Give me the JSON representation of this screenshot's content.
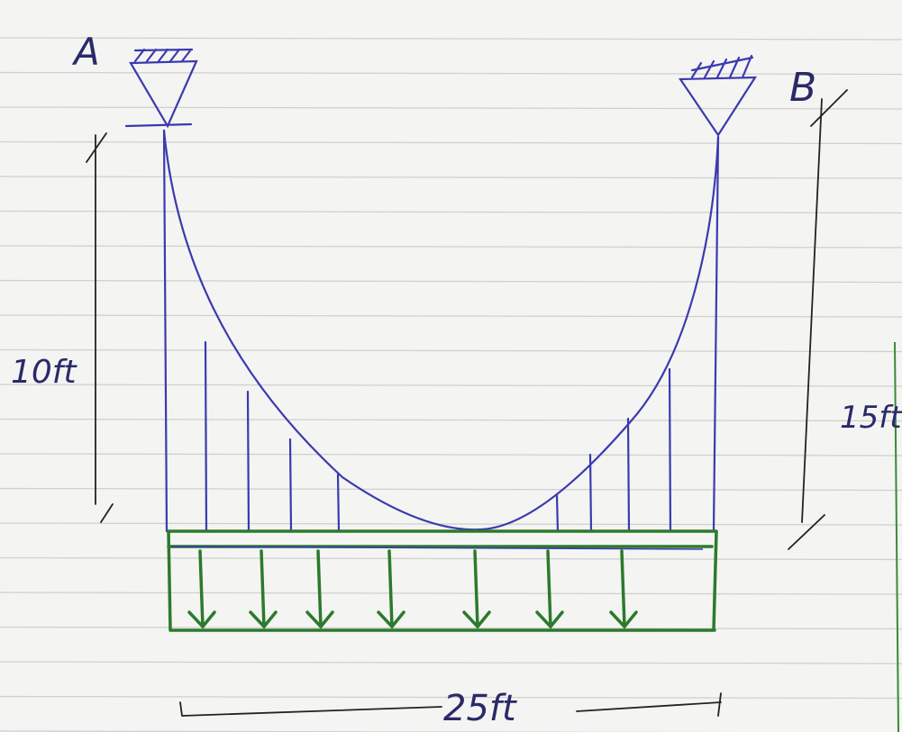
{
  "labels": {
    "support_a": "A",
    "support_b": "B",
    "left_height": "10ft",
    "right_height": "15ft",
    "span": "25ft"
  }
}
